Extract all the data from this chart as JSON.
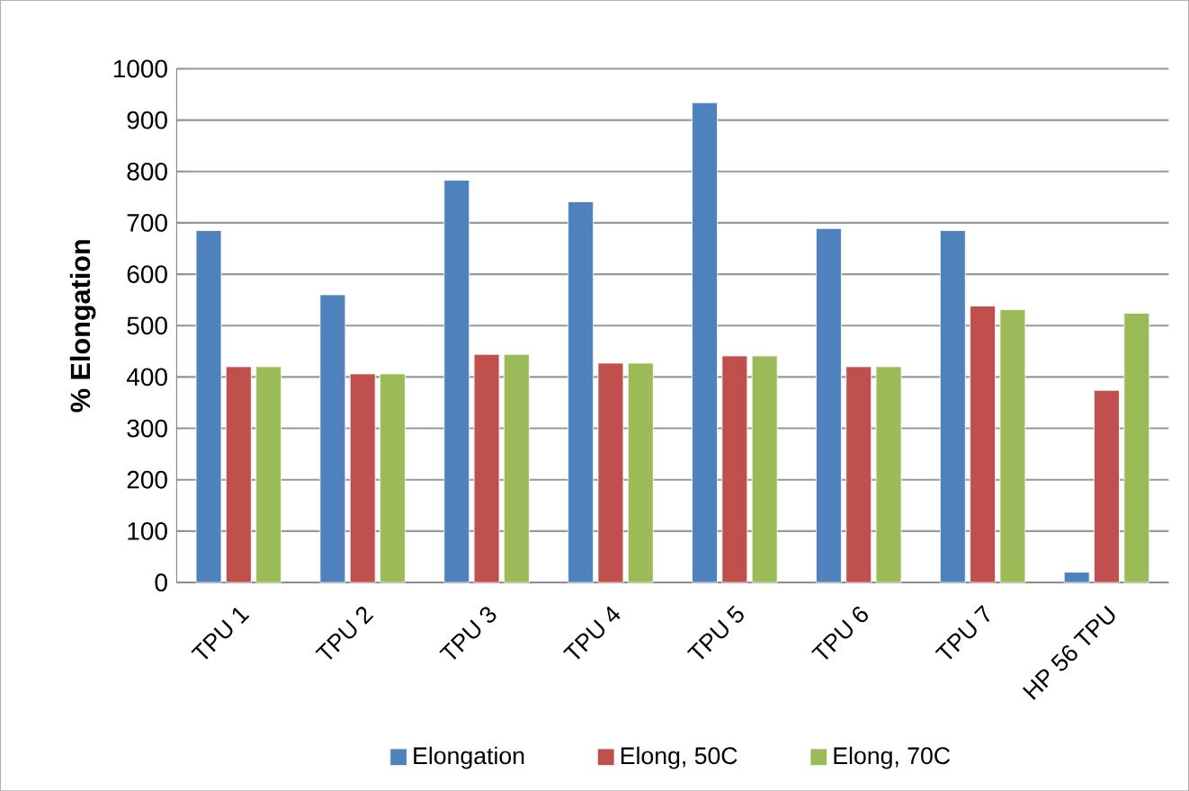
{
  "chart_data": {
    "type": "bar",
    "ylabel": "% Elongation",
    "categories": [
      "TPU 1",
      "TPU 2",
      "TPU 3",
      "TPU 4",
      "TPU 5",
      "TPU 6",
      "TPU 7",
      "HP 56 TPU"
    ],
    "series": [
      {
        "name": "Elongation",
        "color": "#4f81bd",
        "values": [
          685,
          560,
          783,
          741,
          934,
          689,
          685,
          20
        ]
      },
      {
        "name": "Elong, 50C",
        "color": "#c0504d",
        "values": [
          420,
          406,
          444,
          427,
          441,
          420,
          538,
          374
        ]
      },
      {
        "name": "Elong, 70C",
        "color": "#9bbb59",
        "values": [
          420,
          406,
          444,
          427,
          441,
          420,
          531,
          524
        ]
      }
    ],
    "ylim": [
      0,
      1000
    ],
    "yticks": [
      0,
      100,
      200,
      300,
      400,
      500,
      600,
      700,
      800,
      900,
      1000
    ],
    "grid": "y",
    "legend": "bottom"
  }
}
